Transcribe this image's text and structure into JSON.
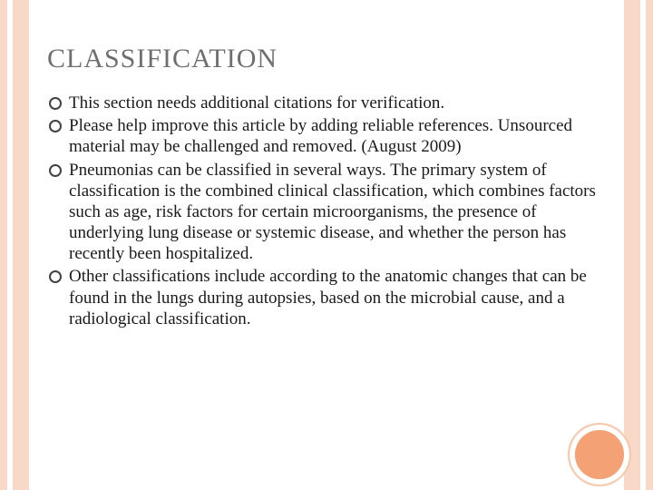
{
  "slide": {
    "title": "CLASSIFICATION",
    "title_color": "#6f6f6f",
    "title_fontsize": 30,
    "body_fontsize": 19,
    "body_color": "#1a1a1a",
    "bullets": [
      "This section needs additional citations for verification.",
      "Please help improve this article by adding reliable references. Unsourced material may be challenged and removed. (August 2009)",
      "Pneumonias can be classified in several ways. The primary system of classification is the combined clinical classification, which combines factors such as age, risk factors for certain microorganisms, the presence of underlying lung disease or systemic disease, and whether the person has recently been hospitalized.",
      "Other classifications include according to the anatomic changes that can be found in the lungs during autopsies, based on the microbial cause, and a radiological classification."
    ],
    "bullet_marker": "hollow-circle",
    "border_color": "#f8d9c8",
    "accent_circle_color": "#f4a175",
    "background_color": "#ffffff"
  }
}
